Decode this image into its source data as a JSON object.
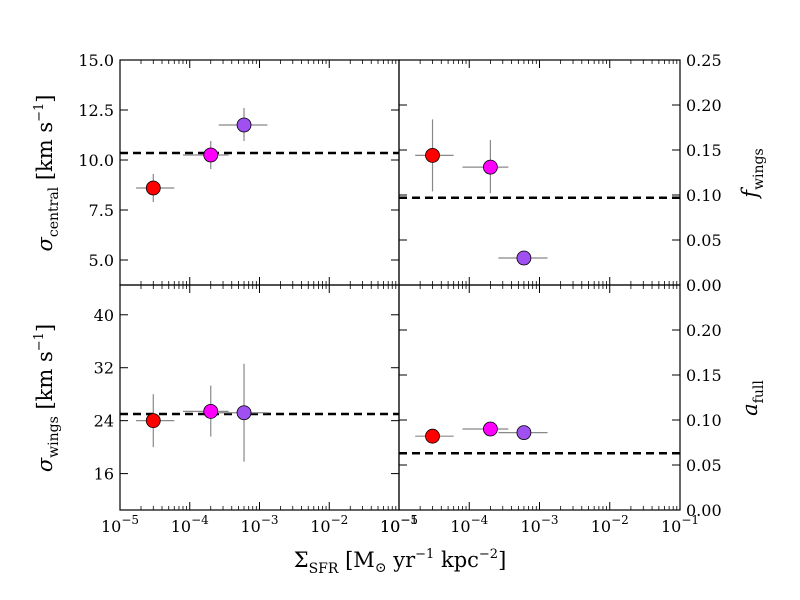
{
  "x_axis": {
    "label_main": "Σ",
    "label_sub": "SFR",
    "label_units_a": " [M",
    "label_sun": "⊙",
    "label_units_b": " yr",
    "label_exp1": "−1",
    "label_units_c": " kpc",
    "label_exp2": "−2",
    "label_close": "]"
  },
  "chart_data": [
    {
      "panel": "top-left",
      "type": "scatter",
      "ylabel": "σ_central [km s^-1]",
      "xlabel": "Σ_SFR [M_sun yr^-1 kpc^-2]",
      "xscale": "log",
      "xlim": [
        1e-05,
        0.1
      ],
      "ylim": [
        3.75,
        15.0
      ],
      "yticks": [
        "5.0",
        "7.5",
        "10.0",
        "12.5",
        "15.0"
      ],
      "xticks": [
        "10^-5",
        "10^-4",
        "10^-3",
        "10^-2",
        "10^-1"
      ],
      "hline": 10.35,
      "points": [
        {
          "x": 3e-05,
          "y": 8.6,
          "xlo": 1.7e-05,
          "xhi": 6e-05,
          "ylo": 7.9,
          "yhi": 9.3,
          "color": "#ff0000"
        },
        {
          "x": 0.0002,
          "y": 10.25,
          "xlo": 8e-05,
          "xhi": 0.00036,
          "ylo": 9.55,
          "yhi": 10.95,
          "color": "#ff00ff"
        },
        {
          "x": 0.0006,
          "y": 11.75,
          "xlo": 0.00026,
          "xhi": 0.0013,
          "ylo": 10.95,
          "yhi": 12.6,
          "color": "#a050f0"
        }
      ]
    },
    {
      "panel": "top-right",
      "type": "scatter",
      "ylabel": "f_wings",
      "xscale": "log",
      "xlim": [
        1e-05,
        0.1
      ],
      "ylim": [
        0.0,
        0.25
      ],
      "yticks": [
        "0.00",
        "0.05",
        "0.10",
        "0.15",
        "0.20",
        "0.25"
      ],
      "xticks": [
        "10^-5",
        "10^-4",
        "10^-3",
        "10^-2",
        "10^-1"
      ],
      "hline": 0.097,
      "points": [
        {
          "x": 3e-05,
          "y": 0.144,
          "xlo": 1.7e-05,
          "xhi": 6e-05,
          "ylo": 0.104,
          "yhi": 0.184,
          "color": "#ff0000"
        },
        {
          "x": 0.0002,
          "y": 0.131,
          "xlo": 8e-05,
          "xhi": 0.00036,
          "ylo": 0.102,
          "yhi": 0.161,
          "color": "#ff00ff"
        },
        {
          "x": 0.0006,
          "y": 0.03,
          "xlo": 0.00026,
          "xhi": 0.0013,
          "ylo": 0.03,
          "yhi": 0.03,
          "color": "#a050f0"
        }
      ]
    },
    {
      "panel": "bottom-left",
      "type": "scatter",
      "ylabel": "σ_wings [km s^-1]",
      "xscale": "log",
      "xlim": [
        1e-05,
        0.1
      ],
      "ylim": [
        10.5,
        44.5
      ],
      "yticks": [
        "16",
        "24",
        "32",
        "40"
      ],
      "xticks": [
        "10^-5",
        "10^-4",
        "10^-3",
        "10^-2",
        "10^-1"
      ],
      "hline": 25.0,
      "points": [
        {
          "x": 3e-05,
          "y": 24.0,
          "xlo": 1.7e-05,
          "xhi": 6e-05,
          "ylo": 20.0,
          "yhi": 28.0,
          "color": "#ff0000"
        },
        {
          "x": 0.0002,
          "y": 25.4,
          "xlo": 8e-05,
          "xhi": 0.00036,
          "ylo": 21.6,
          "yhi": 29.3,
          "color": "#ff00ff"
        },
        {
          "x": 0.0006,
          "y": 25.2,
          "xlo": 0.00026,
          "xhi": 0.0013,
          "ylo": 17.8,
          "yhi": 32.6,
          "color": "#a050f0"
        }
      ]
    },
    {
      "panel": "bottom-right",
      "type": "scatter",
      "ylabel": "a_full",
      "xscale": "log",
      "xlim": [
        1e-05,
        0.1
      ],
      "ylim": [
        0.0,
        0.25
      ],
      "yticks": [
        "0.00",
        "0.05",
        "0.10",
        "0.15",
        "0.20"
      ],
      "xticks": [
        "10^-5",
        "10^-4",
        "10^-3",
        "10^-2",
        "10^-1"
      ],
      "hline": 0.063,
      "points": [
        {
          "x": 3e-05,
          "y": 0.082,
          "xlo": 1.7e-05,
          "xhi": 6e-05,
          "ylo": 0.082,
          "yhi": 0.082,
          "color": "#ff0000"
        },
        {
          "x": 0.0002,
          "y": 0.09,
          "xlo": 8e-05,
          "xhi": 0.00036,
          "ylo": 0.09,
          "yhi": 0.09,
          "color": "#ff00ff"
        },
        {
          "x": 0.0006,
          "y": 0.086,
          "xlo": 0.00026,
          "xhi": 0.0013,
          "ylo": 0.086,
          "yhi": 0.086,
          "color": "#a050f0"
        }
      ]
    }
  ]
}
